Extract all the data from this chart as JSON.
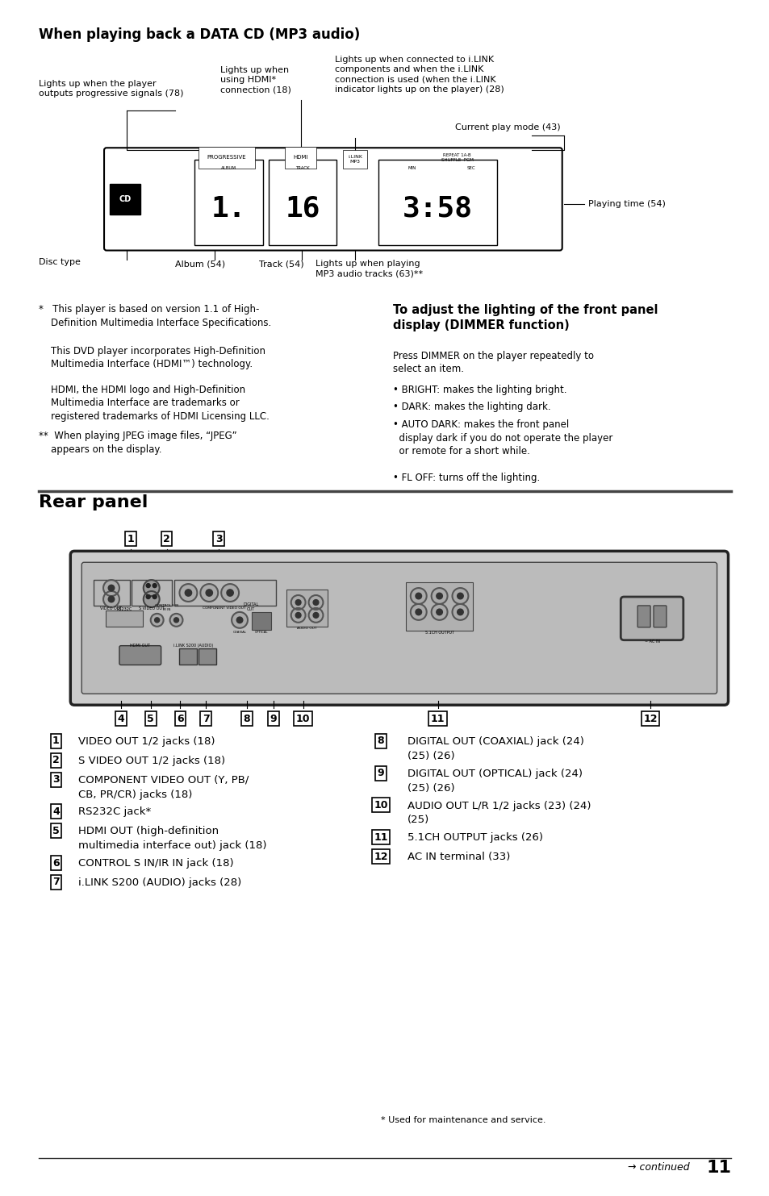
{
  "bg_color": "#ffffff",
  "page_width": 9.54,
  "page_height": 14.83,
  "top_title": "When playing back a DATA CD (MP3 audio)",
  "rear_panel_title": "Rear panel",
  "left_items": [
    [
      "1",
      "VIDEO OUT 1/2 jacks (18)",
      false
    ],
    [
      "2",
      "S VIDEO OUT 1/2 jacks (18)",
      false
    ],
    [
      "3",
      "COMPONENT VIDEO OUT (Y, PB/",
      true,
      "CB, PR/CR) jacks (18)"
    ],
    [
      "4",
      "RS232C jack*",
      false
    ],
    [
      "5",
      "HDMI OUT (high-definition",
      true,
      "multimedia interface out) jack (18)"
    ],
    [
      "6",
      "CONTROL S IN/IR IN jack (18)",
      false
    ],
    [
      "7",
      "i.LINK S200 (AUDIO) jacks (28)",
      false
    ]
  ],
  "right_items": [
    [
      "8",
      "DIGITAL OUT (COAXIAL) jack (24)",
      true,
      "(25) (26)"
    ],
    [
      "9",
      "DIGITAL OUT (OPTICAL) jack (24)",
      true,
      "(25) (26)"
    ],
    [
      "10",
      "AUDIO OUT L/R 1/2 jacks (23) (24)",
      true,
      "(25)"
    ],
    [
      "11",
      "5.1CH OUTPUT jacks (26)",
      false
    ],
    [
      "12",
      "AC IN terminal (33)",
      false
    ]
  ],
  "footnote_used": "* Used for maintenance and service."
}
